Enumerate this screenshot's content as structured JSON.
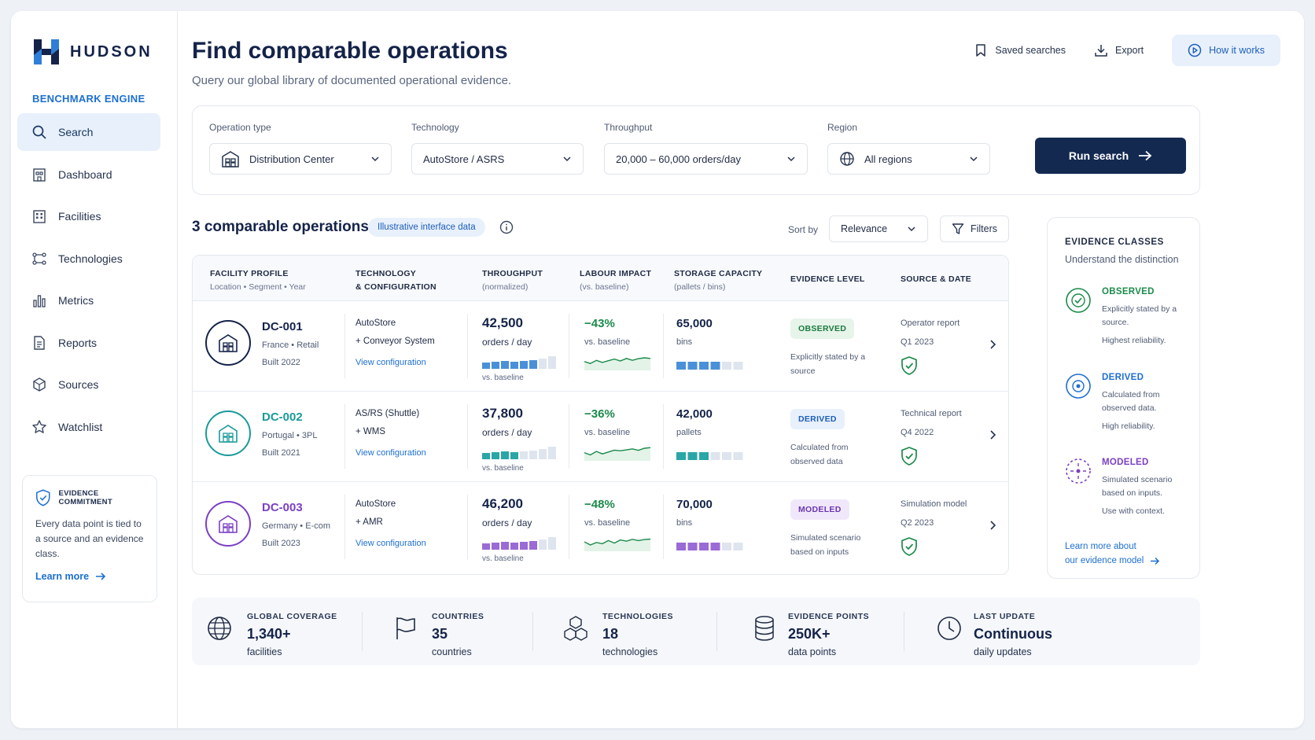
{
  "brand": {
    "name": "HUDSON",
    "subtitle": "BENCHMARK ENGINE"
  },
  "sidebar": {
    "items": [
      {
        "label": "Search",
        "icon": "search-icon"
      },
      {
        "label": "Dashboard",
        "icon": "dashboard-icon"
      },
      {
        "label": "Facilities",
        "icon": "building-icon"
      },
      {
        "label": "Technologies",
        "icon": "network-icon"
      },
      {
        "label": "Metrics",
        "icon": "bar-chart-icon"
      },
      {
        "label": "Reports",
        "icon": "document-icon"
      },
      {
        "label": "Sources",
        "icon": "cube-icon"
      },
      {
        "label": "Watchlist",
        "icon": "star-icon"
      }
    ],
    "active": "Search",
    "commitment": {
      "title": "EVIDENCE COMMITMENT",
      "text": "Every data point is tied to a source and an evidence class.",
      "link": "Learn more"
    }
  },
  "header": {
    "title": "Find comparable operations",
    "subtitle": "Query our global library of documented operational evidence.",
    "actions": {
      "saved": "Saved searches",
      "export": "Export",
      "how": "How it works"
    }
  },
  "search": {
    "operation_type": {
      "label": "Operation type",
      "value": "Distribution Center"
    },
    "technology": {
      "label": "Technology",
      "value": "AutoStore / ASRS"
    },
    "throughput": {
      "label": "Throughput",
      "value": "20,000 – 60,000 orders/day"
    },
    "region": {
      "label": "Region",
      "value": "All regions"
    },
    "run_label": "Run search"
  },
  "results": {
    "title": "3 comparable operations",
    "badge": "Illustrative interface data",
    "sort_label": "Sort by",
    "sort_value": "Relevance",
    "filters_label": "Filters",
    "columns": {
      "facility": {
        "title": "FACILITY PROFILE",
        "sub": "Location • Segment • Year"
      },
      "technology": {
        "title1": "TECHNOLOGY",
        "title2": "& CONFIGURATION"
      },
      "throughput": {
        "title": "THROUGHPUT",
        "sub": "(normalized)"
      },
      "labour": {
        "title": "LABOUR IMPACT",
        "sub": "(vs. baseline)"
      },
      "storage": {
        "title": "STORAGE CAPACITY",
        "sub": "(pallets / bins)"
      },
      "evidence": {
        "title": "EVIDENCE LEVEL"
      },
      "source": {
        "title": "SOURCE & DATE"
      }
    },
    "rows": [
      {
        "id": "DC-001",
        "location": "France  •  Retail",
        "built": "Built 2022",
        "tech1": "AutoStore",
        "tech2": "+ Conveyor System",
        "config_link": "View configuration",
        "throughput": "42,500",
        "throughput_unit": "orders / day",
        "throughput_note": "vs. baseline",
        "throughput_level": 0.75,
        "labour": "−43%",
        "labour_note": "vs. baseline",
        "storage": "65,000",
        "storage_unit": "bins",
        "storage_level": 0.67,
        "evidence": "OBSERVED",
        "evidence_desc": "Explicitly stated by a source",
        "source": "Operator report",
        "date": "Q1 2023",
        "color": "#1d5fb8",
        "accent": "#4a90d9",
        "badge_bg": "#e6f4ea",
        "badge_fg": "#1b7a3e"
      },
      {
        "id": "DC-002",
        "location": "Portugal  •  3PL",
        "built": "Built 2021",
        "tech1": "AS/RS (Shuttle)",
        "tech2": "+ WMS",
        "config_link": "View configuration",
        "throughput": "37,800",
        "throughput_unit": "orders / day",
        "throughput_note": "vs. baseline",
        "throughput_level": 0.5,
        "labour": "−36%",
        "labour_note": "vs. baseline",
        "storage": "42,000",
        "storage_unit": "pallets",
        "storage_level": 0.5,
        "evidence": "DERIVED",
        "evidence_desc": "Calculated from observed data",
        "source": "Technical report",
        "date": "Q4 2022",
        "color": "#1a9a9a",
        "accent": "#2aa6a6",
        "badge_bg": "#e8f0fb",
        "badge_fg": "#1d5fb8"
      },
      {
        "id": "DC-003",
        "location": "Germany  •  E-com",
        "built": "Built 2023",
        "tech1": "AutoStore",
        "tech2": "+ AMR",
        "config_link": "View configuration",
        "throughput": "46,200",
        "throughput_unit": "orders / day",
        "throughput_note": "vs. baseline",
        "throughput_level": 0.75,
        "labour": "−48%",
        "labour_note": "vs. baseline",
        "storage": "70,000",
        "storage_unit": "bins",
        "storage_level": 0.67,
        "evidence": "MODELED",
        "evidence_desc": "Simulated scenario based on inputs",
        "source": "Simulation model",
        "date": "Q2 2023",
        "color": "#7b3fc4",
        "accent": "#9a6ad6",
        "badge_bg": "#f0e8fa",
        "badge_fg": "#6a35b0"
      }
    ]
  },
  "evidence_panel": {
    "title": "EVIDENCE CLASSES",
    "subtitle": "Understand the distinction",
    "classes": [
      {
        "name": "OBSERVED",
        "desc": "Explicitly stated by a source.",
        "rel": "Highest reliability.",
        "color": "#1b8a4a"
      },
      {
        "name": "DERIVED",
        "desc": "Calculated from observed data.",
        "rel": "High reliability.",
        "color": "#1d6fd0"
      },
      {
        "name": "MODELED",
        "desc": "Simulated scenario based on inputs.",
        "rel": "Use with context.",
        "color": "#7b3fc4"
      }
    ],
    "link1": "Learn more about",
    "link2": "our evidence model"
  },
  "stats": [
    {
      "label": "GLOBAL COVERAGE",
      "value": "1,340+",
      "sub": "facilities",
      "icon": "globe-icon"
    },
    {
      "label": "COUNTRIES",
      "value": "35",
      "sub": "countries",
      "icon": "flag-icon"
    },
    {
      "label": "TECHNOLOGIES",
      "value": "18",
      "sub": "technologies",
      "icon": "cubes-icon"
    },
    {
      "label": "EVIDENCE POINTS",
      "value": "250K+",
      "sub": "data points",
      "icon": "database-icon"
    },
    {
      "label": "LAST UPDATE",
      "value": "Continuous",
      "sub": "daily updates",
      "icon": "clock-icon"
    }
  ]
}
